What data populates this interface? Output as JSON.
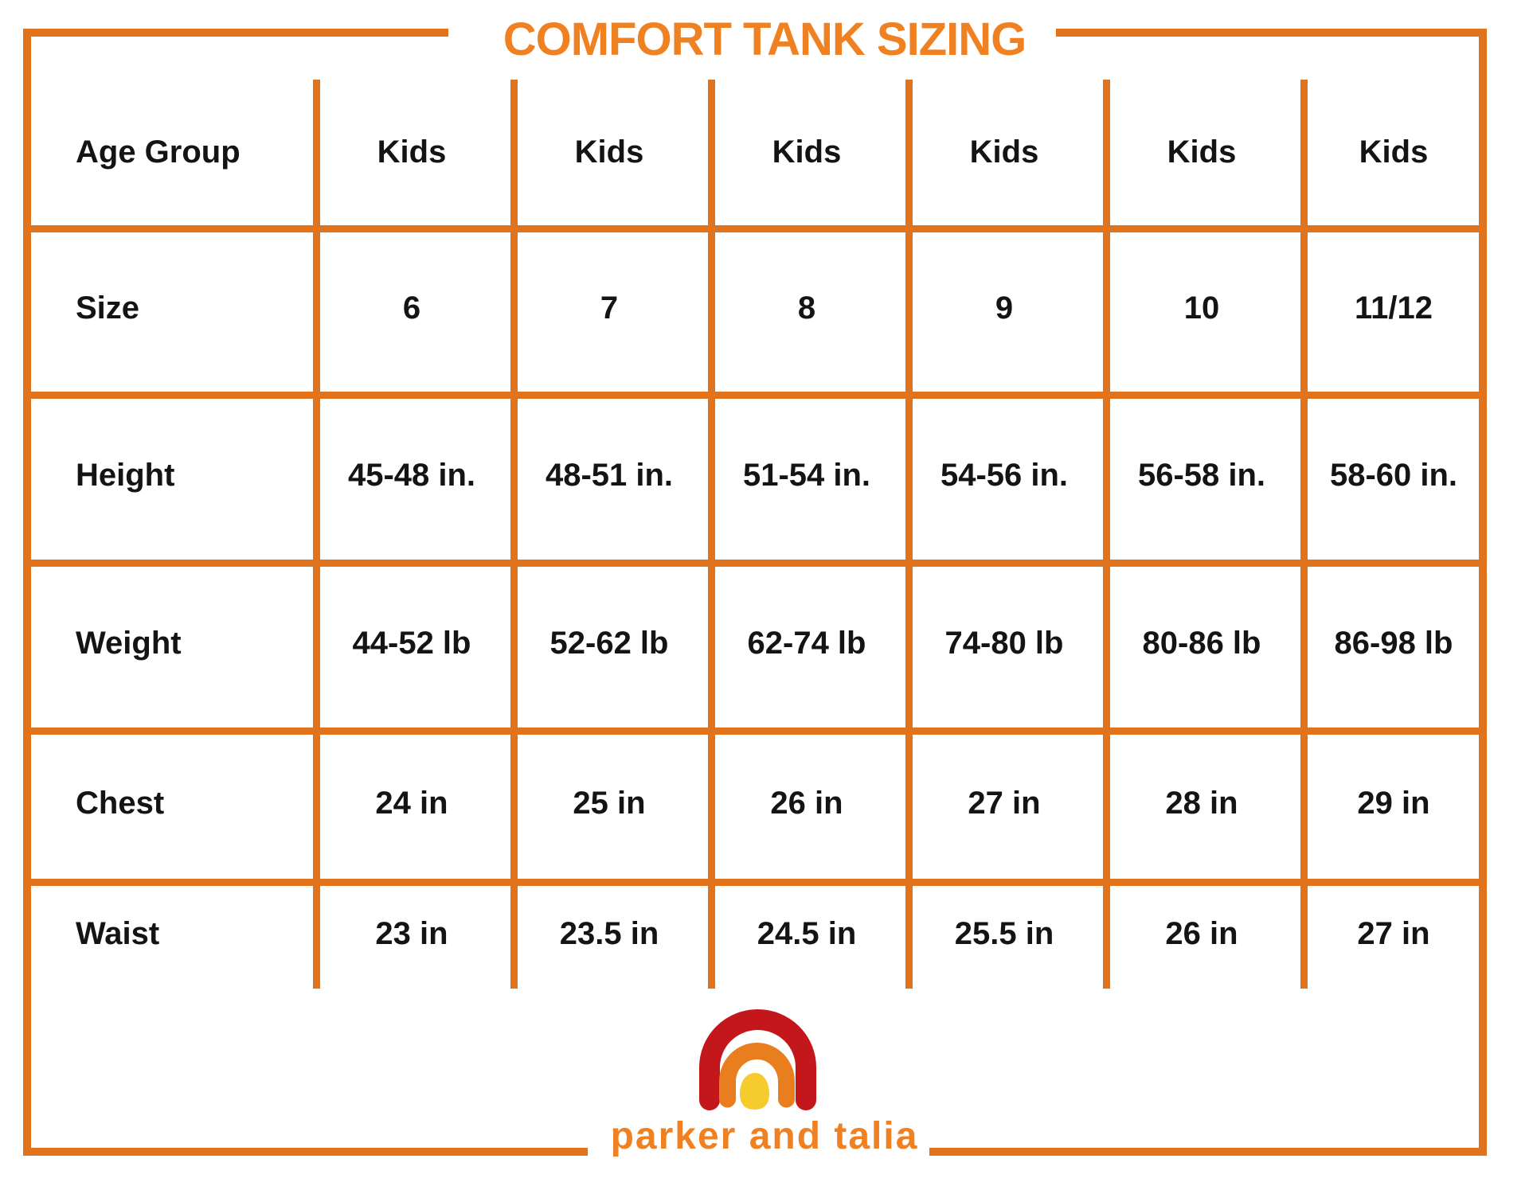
{
  "title": "COMFORT TANK SIZING",
  "brand": "parker and talia",
  "colors": {
    "grid_orange": "#E2731D",
    "title_orange": "#F08123",
    "logo_red": "#C4171C",
    "logo_orange": "#E87E1E",
    "logo_yellow": "#F6CB2E",
    "text_black": "#141414"
  },
  "chart_data": {
    "type": "table",
    "title": "COMFORT TANK SIZING",
    "columns": [
      "Age Group",
      "Kids",
      "Kids",
      "Kids",
      "Kids",
      "Kids",
      "Kids"
    ],
    "rows": [
      {
        "label": "Age Group",
        "values": [
          "Kids",
          "Kids",
          "Kids",
          "Kids",
          "Kids",
          "Kids"
        ]
      },
      {
        "label": "Size",
        "values": [
          "6",
          "7",
          "8",
          "9",
          "10",
          "11/12"
        ]
      },
      {
        "label": "Height",
        "values": [
          "45-48 in.",
          "48-51 in.",
          "51-54 in.",
          "54-56 in.",
          "56-58 in.",
          "58-60 in."
        ]
      },
      {
        "label": "Weight",
        "values": [
          "44-52 lb",
          "52-62 lb",
          "62-74 lb",
          "74-80 lb",
          "80-86 lb",
          "86-98 lb"
        ]
      },
      {
        "label": "Chest",
        "values": [
          "24 in",
          "25 in",
          "26 in",
          "27 in",
          "28 in",
          "29 in"
        ]
      },
      {
        "label": "Waist",
        "values": [
          "23 in",
          "23.5 in",
          "24.5 in",
          "25.5 in",
          "26 in",
          "27 in"
        ]
      }
    ]
  }
}
